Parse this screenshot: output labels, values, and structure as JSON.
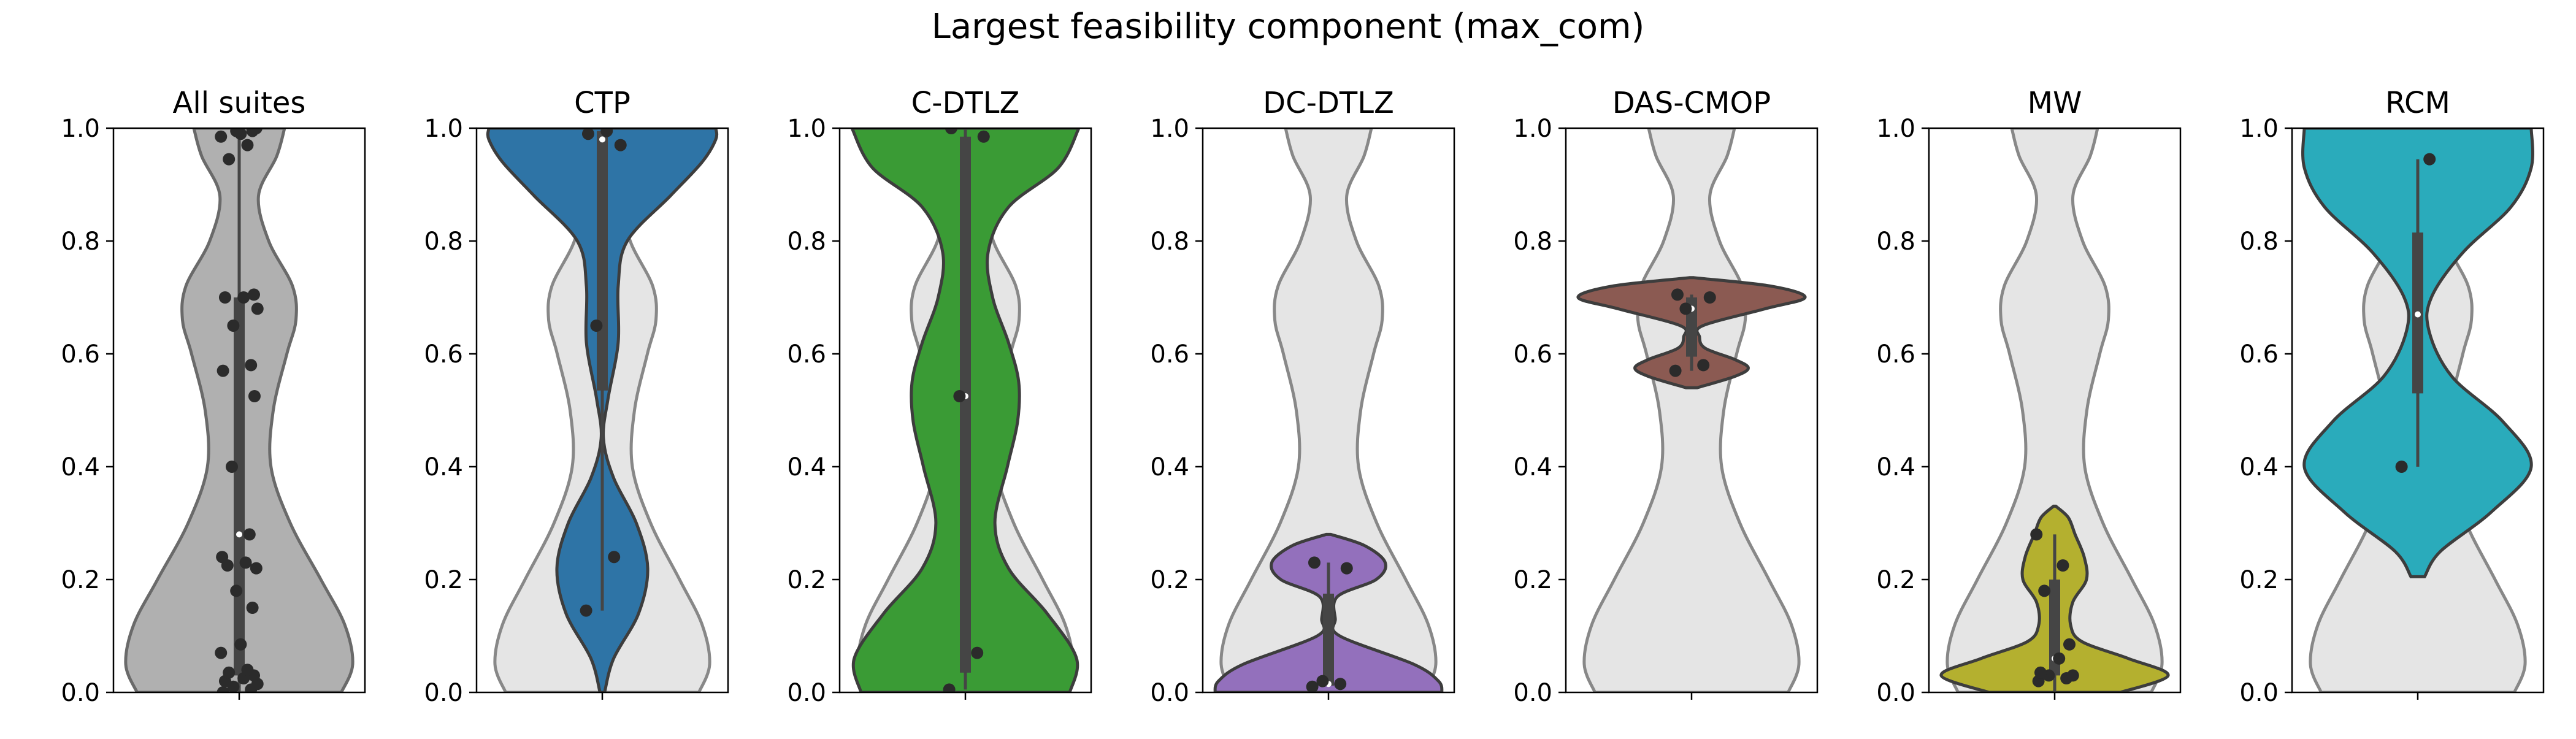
{
  "figure": {
    "title": "Largest feasibility component (max_com)"
  },
  "colors": {
    "background_violin_fill": "#e5e5e5",
    "background_violin_edge": "#888888",
    "all_suites": "#b0b0b0",
    "CTP": "#2e74a6",
    "C-DTLZ": "#3a9b35",
    "DC-DTLZ": "#9370bc",
    "DAS-CMOP": "#8b5a52",
    "MW": "#b4b02f",
    "RCM": "#2aabbb",
    "violin_edge": "#3d3d3d",
    "box": "#454545",
    "points": "#2b2b2b",
    "median": "#ffffff"
  },
  "chart_data": [
    {
      "type": "violin",
      "title": "All suites",
      "color_key": "all_suites",
      "background_violin": false,
      "ylim": [
        0,
        1
      ],
      "yticks": [
        "0.0",
        "0.2",
        "0.4",
        "0.6",
        "0.8",
        "1.0"
      ],
      "values": [
        0.0,
        0.005,
        0.01,
        0.015,
        0.02,
        0.025,
        0.03,
        0.035,
        0.04,
        0.07,
        0.085,
        0.15,
        0.18,
        0.22,
        0.225,
        0.23,
        0.24,
        0.28,
        0.4,
        0.525,
        0.57,
        0.58,
        0.65,
        0.68,
        0.7,
        0.7,
        0.705,
        0.945,
        0.97,
        0.985,
        0.99,
        0.995,
        0.995,
        1.0
      ],
      "density": [
        [
          0.0,
          0.9
        ],
        [
          0.05,
          1.0
        ],
        [
          0.12,
          0.93
        ],
        [
          0.2,
          0.72
        ],
        [
          0.3,
          0.45
        ],
        [
          0.4,
          0.28
        ],
        [
          0.5,
          0.3
        ],
        [
          0.6,
          0.42
        ],
        [
          0.66,
          0.5
        ],
        [
          0.72,
          0.47
        ],
        [
          0.8,
          0.26
        ],
        [
          0.88,
          0.17
        ],
        [
          0.95,
          0.33
        ],
        [
          1.0,
          0.4
        ]
      ],
      "box": {
        "q1": 0.03,
        "median": 0.28,
        "q3": 0.7,
        "whisker_low": 0.0,
        "whisker_high": 1.0
      }
    },
    {
      "type": "violin",
      "title": "CTP",
      "color_key": "CTP",
      "background_violin": true,
      "ylim": [
        0,
        1
      ],
      "yticks": [
        "0.0",
        "0.2",
        "0.4",
        "0.6",
        "0.8",
        "1.0"
      ],
      "values": [
        0.145,
        0.24,
        0.65,
        0.97,
        0.99,
        0.995
      ],
      "density": [
        [
          0.0,
          0.02
        ],
        [
          0.06,
          0.1
        ],
        [
          0.14,
          0.32
        ],
        [
          0.22,
          0.4
        ],
        [
          0.3,
          0.3
        ],
        [
          0.38,
          0.1
        ],
        [
          0.45,
          0.01
        ],
        [
          0.52,
          0.05
        ],
        [
          0.62,
          0.14
        ],
        [
          0.72,
          0.14
        ],
        [
          0.8,
          0.22
        ],
        [
          0.88,
          0.6
        ],
        [
          0.94,
          0.88
        ],
        [
          0.98,
          1.0
        ],
        [
          1.0,
          1.0
        ]
      ],
      "box": {
        "q1": 0.535,
        "median": 0.98,
        "q3": 0.995,
        "whisker_low": 0.145,
        "whisker_high": 1.0
      }
    },
    {
      "type": "violin",
      "title": "C-DTLZ",
      "color_key": "C-DTLZ",
      "background_violin": true,
      "ylim": [
        0,
        1
      ],
      "yticks": [
        "0.0",
        "0.2",
        "0.4",
        "0.6",
        "0.8",
        "1.0"
      ],
      "values": [
        0.005,
        0.07,
        0.525,
        0.985,
        1.0
      ],
      "density": [
        [
          0.0,
          0.92
        ],
        [
          0.06,
          0.98
        ],
        [
          0.14,
          0.72
        ],
        [
          0.22,
          0.38
        ],
        [
          0.3,
          0.26
        ],
        [
          0.4,
          0.37
        ],
        [
          0.48,
          0.46
        ],
        [
          0.55,
          0.47
        ],
        [
          0.62,
          0.38
        ],
        [
          0.7,
          0.24
        ],
        [
          0.78,
          0.2
        ],
        [
          0.86,
          0.38
        ],
        [
          0.93,
          0.82
        ],
        [
          1.0,
          1.0
        ]
      ],
      "box": {
        "q1": 0.035,
        "median": 0.525,
        "q3": 0.985,
        "whisker_low": 0.005,
        "whisker_high": 1.0
      }
    },
    {
      "type": "violin",
      "title": "DC-DTLZ",
      "color_key": "DC-DTLZ",
      "background_violin": true,
      "ylim": [
        0,
        1
      ],
      "yticks": [
        "0.0",
        "0.2",
        "0.4",
        "0.6",
        "0.8",
        "1.0"
      ],
      "values": [
        0.01,
        0.015,
        0.02,
        0.22,
        0.23
      ],
      "density": [
        [
          0.0,
          1.0
        ],
        [
          0.02,
          0.97
        ],
        [
          0.05,
          0.75
        ],
        [
          0.1,
          0.1
        ],
        [
          0.13,
          0.06
        ],
        [
          0.17,
          0.08
        ],
        [
          0.2,
          0.42
        ],
        [
          0.23,
          0.5
        ],
        [
          0.26,
          0.32
        ],
        [
          0.28,
          0.02
        ]
      ],
      "box": {
        "q1": 0.012,
        "median": 0.015,
        "q3": 0.175,
        "whisker_low": 0.01,
        "whisker_high": 0.23
      }
    },
    {
      "type": "violin",
      "title": "DAS-CMOP",
      "color_key": "DAS-CMOP",
      "background_violin": true,
      "ylim": [
        0,
        1
      ],
      "yticks": [
        "0.0",
        "0.2",
        "0.4",
        "0.6",
        "0.8",
        "1.0"
      ],
      "values": [
        0.57,
        0.58,
        0.68,
        0.7,
        0.705
      ],
      "density": [
        [
          0.54,
          0.05
        ],
        [
          0.56,
          0.38
        ],
        [
          0.575,
          0.5
        ],
        [
          0.59,
          0.38
        ],
        [
          0.61,
          0.12
        ],
        [
          0.63,
          0.07
        ],
        [
          0.65,
          0.1
        ],
        [
          0.68,
          0.65
        ],
        [
          0.7,
          1.0
        ],
        [
          0.72,
          0.7
        ],
        [
          0.735,
          0.02
        ]
      ],
      "box": {
        "q1": 0.595,
        "median": 0.68,
        "q3": 0.7,
        "whisker_low": 0.57,
        "whisker_high": 0.705
      }
    },
    {
      "type": "violin",
      "title": "MW",
      "color_key": "MW",
      "background_violin": true,
      "ylim": [
        0,
        1
      ],
      "yticks": [
        "0.0",
        "0.2",
        "0.4",
        "0.6",
        "0.8",
        "1.0"
      ],
      "values": [
        0.02,
        0.025,
        0.03,
        0.03,
        0.035,
        0.06,
        0.085,
        0.18,
        0.225,
        0.28
      ],
      "density": [
        [
          0.0,
          0.58
        ],
        [
          0.03,
          1.0
        ],
        [
          0.06,
          0.65
        ],
        [
          0.09,
          0.24
        ],
        [
          0.12,
          0.14
        ],
        [
          0.16,
          0.16
        ],
        [
          0.2,
          0.28
        ],
        [
          0.24,
          0.26
        ],
        [
          0.28,
          0.18
        ],
        [
          0.31,
          0.12
        ],
        [
          0.33,
          0.01
        ]
      ],
      "box": {
        "q1": 0.03,
        "median": 0.06,
        "q3": 0.2,
        "whisker_low": 0.0,
        "whisker_high": 0.28
      }
    },
    {
      "type": "violin",
      "title": "RCM",
      "color_key": "RCM",
      "background_violin": true,
      "ylim": [
        0,
        1
      ],
      "yticks": [
        "0.0",
        "0.2",
        "0.4",
        "0.6",
        "0.8",
        "1.0"
      ],
      "values": [
        0.4,
        0.945
      ],
      "density": [
        [
          0.205,
          0.06
        ],
        [
          0.25,
          0.2
        ],
        [
          0.32,
          0.65
        ],
        [
          0.4,
          1.0
        ],
        [
          0.48,
          0.75
        ],
        [
          0.56,
          0.3
        ],
        [
          0.64,
          0.1
        ],
        [
          0.7,
          0.12
        ],
        [
          0.78,
          0.4
        ],
        [
          0.86,
          0.82
        ],
        [
          0.93,
          1.0
        ],
        [
          1.0,
          1.0
        ]
      ],
      "box": {
        "q1": 0.53,
        "median": 0.67,
        "q3": 0.815,
        "whisker_low": 0.4,
        "whisker_high": 0.945
      }
    }
  ]
}
